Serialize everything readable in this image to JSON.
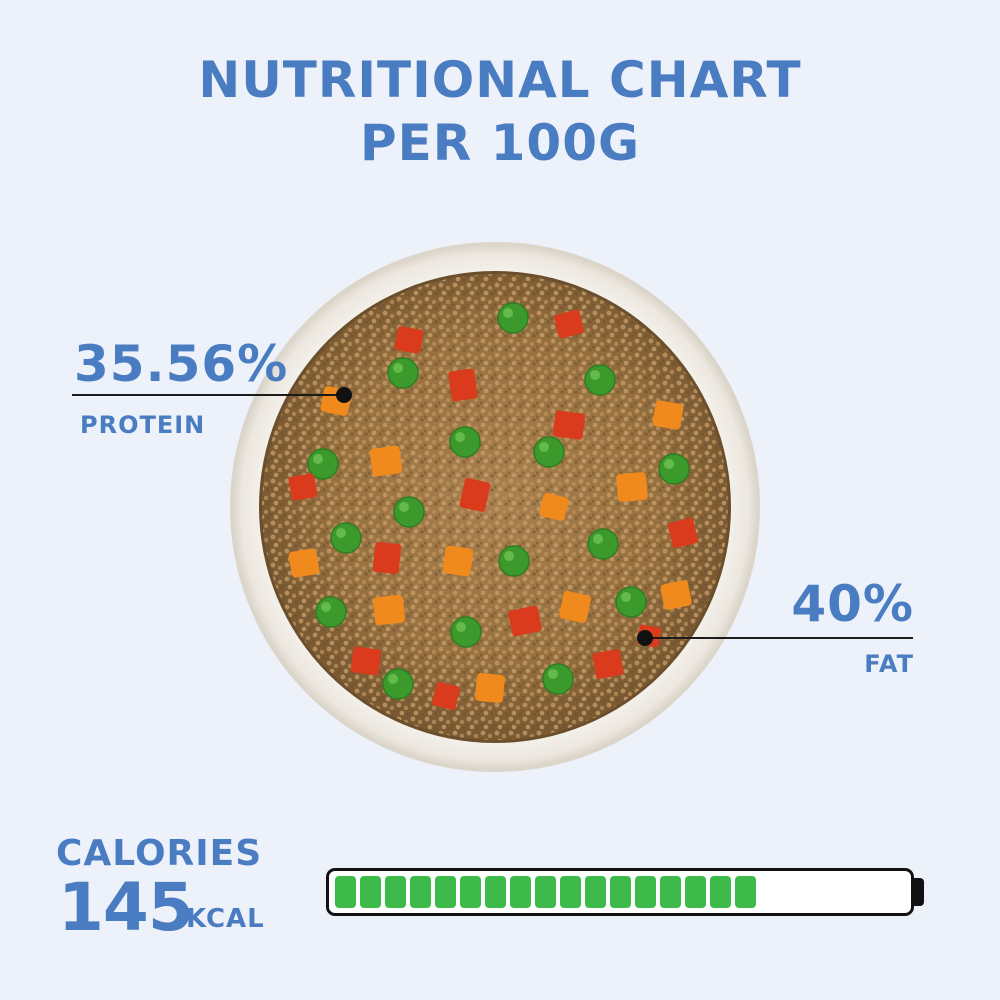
{
  "title": {
    "line1": "NUTRITIONAL CHART",
    "line2": "PER 100G"
  },
  "protein": {
    "value": "35.56%",
    "label": "PROTEIN"
  },
  "fat": {
    "value": "40%",
    "label": "FAT"
  },
  "calories": {
    "label": "CALORIES",
    "value": "145",
    "unit": "KCAL",
    "bar_fill_fraction": 0.76,
    "bar_color": "#3dba4a"
  },
  "colors": {
    "accent": "#4a7cc2",
    "background": "#edf1f9"
  },
  "image": {
    "subject": "bowl-of-food-image"
  }
}
